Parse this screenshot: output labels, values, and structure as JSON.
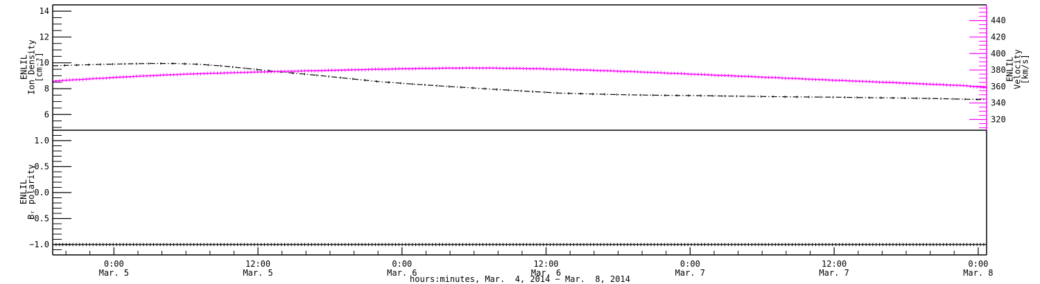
{
  "chart_data": {
    "type": "line",
    "title": "",
    "background": "#FFFFFF",
    "frame_color": "#000000",
    "x_axis": {
      "title": "hours:minutes, Mar.  4, 2014 − Mar.  8, 2014",
      "unit": "hours since Mar. 4, 2014 00:00",
      "xlim": [
        18.9,
        96.7
      ],
      "minor_step_hours": 2,
      "major_ticks": [
        {
          "t": 24,
          "hour": "0:00",
          "date": "Mar. 5"
        },
        {
          "t": 36,
          "hour": "12:00",
          "date": "Mar. 5"
        },
        {
          "t": 48,
          "hour": "0:00",
          "date": "Mar. 6"
        },
        {
          "t": 60,
          "hour": "12:00",
          "date": "Mar. 6"
        },
        {
          "t": 72,
          "hour": "0:00",
          "date": "Mar. 7"
        },
        {
          "t": 84,
          "hour": "12:00",
          "date": "Mar. 7"
        },
        {
          "t": 96,
          "hour": "0:00",
          "date": "Mar. 8"
        }
      ]
    },
    "panels": [
      {
        "name": "density-velocity-panel",
        "left_axis": {
          "label_lines": [
            "ENLIL",
            "Ion Density",
            "[cm⁻³]"
          ],
          "ylim": [
            4.78,
            14.49
          ],
          "minor_step": 0.5,
          "color": "#000000",
          "major_ticks": [
            {
              "v": 6,
              "label": "6"
            },
            {
              "v": 8,
              "label": "8"
            },
            {
              "v": 10,
              "label": "10"
            },
            {
              "v": 12,
              "label": "12"
            },
            {
              "v": 14,
              "label": "14"
            }
          ]
        },
        "right_axis": {
          "label_lines": [
            "ENLIL",
            "Velocity",
            "[km/s]"
          ],
          "title_color": "#000000",
          "ylim": [
            307,
            459
          ],
          "minor_step": 5,
          "color": "#FF00FF",
          "major_ticks": [
            {
              "v": 320,
              "label": "320"
            },
            {
              "v": 340,
              "label": "340"
            },
            {
              "v": 360,
              "label": "360"
            },
            {
              "v": 380,
              "label": "380"
            },
            {
              "v": 400,
              "label": "400"
            },
            {
              "v": 420,
              "label": "420"
            },
            {
              "v": 440,
              "label": "440"
            }
          ]
        },
        "series": [
          {
            "name": "ion-density",
            "axis": "left",
            "color": "#000000",
            "style": "dash-dot",
            "points": [
              [
                18.9,
                9.77
              ],
              [
                21,
                9.83
              ],
              [
                23,
                9.88
              ],
              [
                25,
                9.92
              ],
              [
                27,
                9.95
              ],
              [
                29,
                9.95
              ],
              [
                31,
                9.89
              ],
              [
                33,
                9.76
              ],
              [
                35,
                9.57
              ],
              [
                37,
                9.38
              ],
              [
                39,
                9.2
              ],
              [
                41,
                9.03
              ],
              [
                43.5,
                8.79
              ],
              [
                46,
                8.55
              ],
              [
                49,
                8.35
              ],
              [
                52,
                8.16
              ],
              [
                55,
                7.99
              ],
              [
                58,
                7.82
              ],
              [
                61,
                7.66
              ],
              [
                64,
                7.58
              ],
              [
                67,
                7.52
              ],
              [
                70,
                7.48
              ],
              [
                72.5,
                7.46
              ],
              [
                75.5,
                7.42
              ],
              [
                78,
                7.39
              ],
              [
                81,
                7.36
              ],
              [
                84,
                7.34
              ],
              [
                87,
                7.3
              ],
              [
                90,
                7.27
              ],
              [
                93,
                7.22
              ],
              [
                96.7,
                7.15
              ]
            ]
          },
          {
            "name": "velocity",
            "axis": "right",
            "color": "#FF00FF",
            "style": "plus",
            "points": [
              [
                18.9,
                366.5
              ],
              [
                21,
                368.4
              ],
              [
                23,
                370.1
              ],
              [
                25,
                371.7
              ],
              [
                27,
                373.1
              ],
              [
                29,
                374.4
              ],
              [
                31,
                375.5
              ],
              [
                33,
                376.4
              ],
              [
                35,
                377.2
              ],
              [
                37,
                377.9
              ],
              [
                39,
                378.6
              ],
              [
                41,
                379.2
              ],
              [
                43.5,
                380.1
              ],
              [
                46,
                380.9
              ],
              [
                49,
                381.7
              ],
              [
                52,
                382.3
              ],
              [
                55,
                382.4
              ],
              [
                58,
                381.9
              ],
              [
                61,
                381.0
              ],
              [
                64,
                379.6
              ],
              [
                67,
                378.1
              ],
              [
                70,
                376.4
              ],
              [
                72.5,
                374.8
              ],
              [
                75.5,
                372.9
              ],
              [
                78,
                371.4
              ],
              [
                81,
                369.5
              ],
              [
                84,
                367.6
              ],
              [
                87,
                365.9
              ],
              [
                90,
                364.1
              ],
              [
                93,
                362.2
              ],
              [
                95,
                360.9
              ],
              [
                96.7,
                358.5
              ]
            ]
          }
        ]
      },
      {
        "name": "polarity-panel",
        "left_axis": {
          "label_lines": [
            "ENLIL",
            "Bᵣ polarity"
          ],
          "ylim": [
            -1.2,
            1.2
          ],
          "minor_step": 0.1,
          "color": "#000000",
          "major_ticks": [
            {
              "v": -1.0,
              "label": "−1.0"
            },
            {
              "v": -0.5,
              "label": "−0.5"
            },
            {
              "v": 0.0,
              "label": "0.0"
            },
            {
              "v": 0.5,
              "label": "0.5"
            },
            {
              "v": 1.0,
              "label": "1.0"
            }
          ]
        },
        "series": [
          {
            "name": "br-polarity",
            "axis": "left",
            "color": "#000000",
            "style": "plus",
            "points": [
              [
                18.9,
                -1.0
              ],
              [
                96.7,
                -1.0
              ]
            ]
          }
        ]
      }
    ]
  }
}
